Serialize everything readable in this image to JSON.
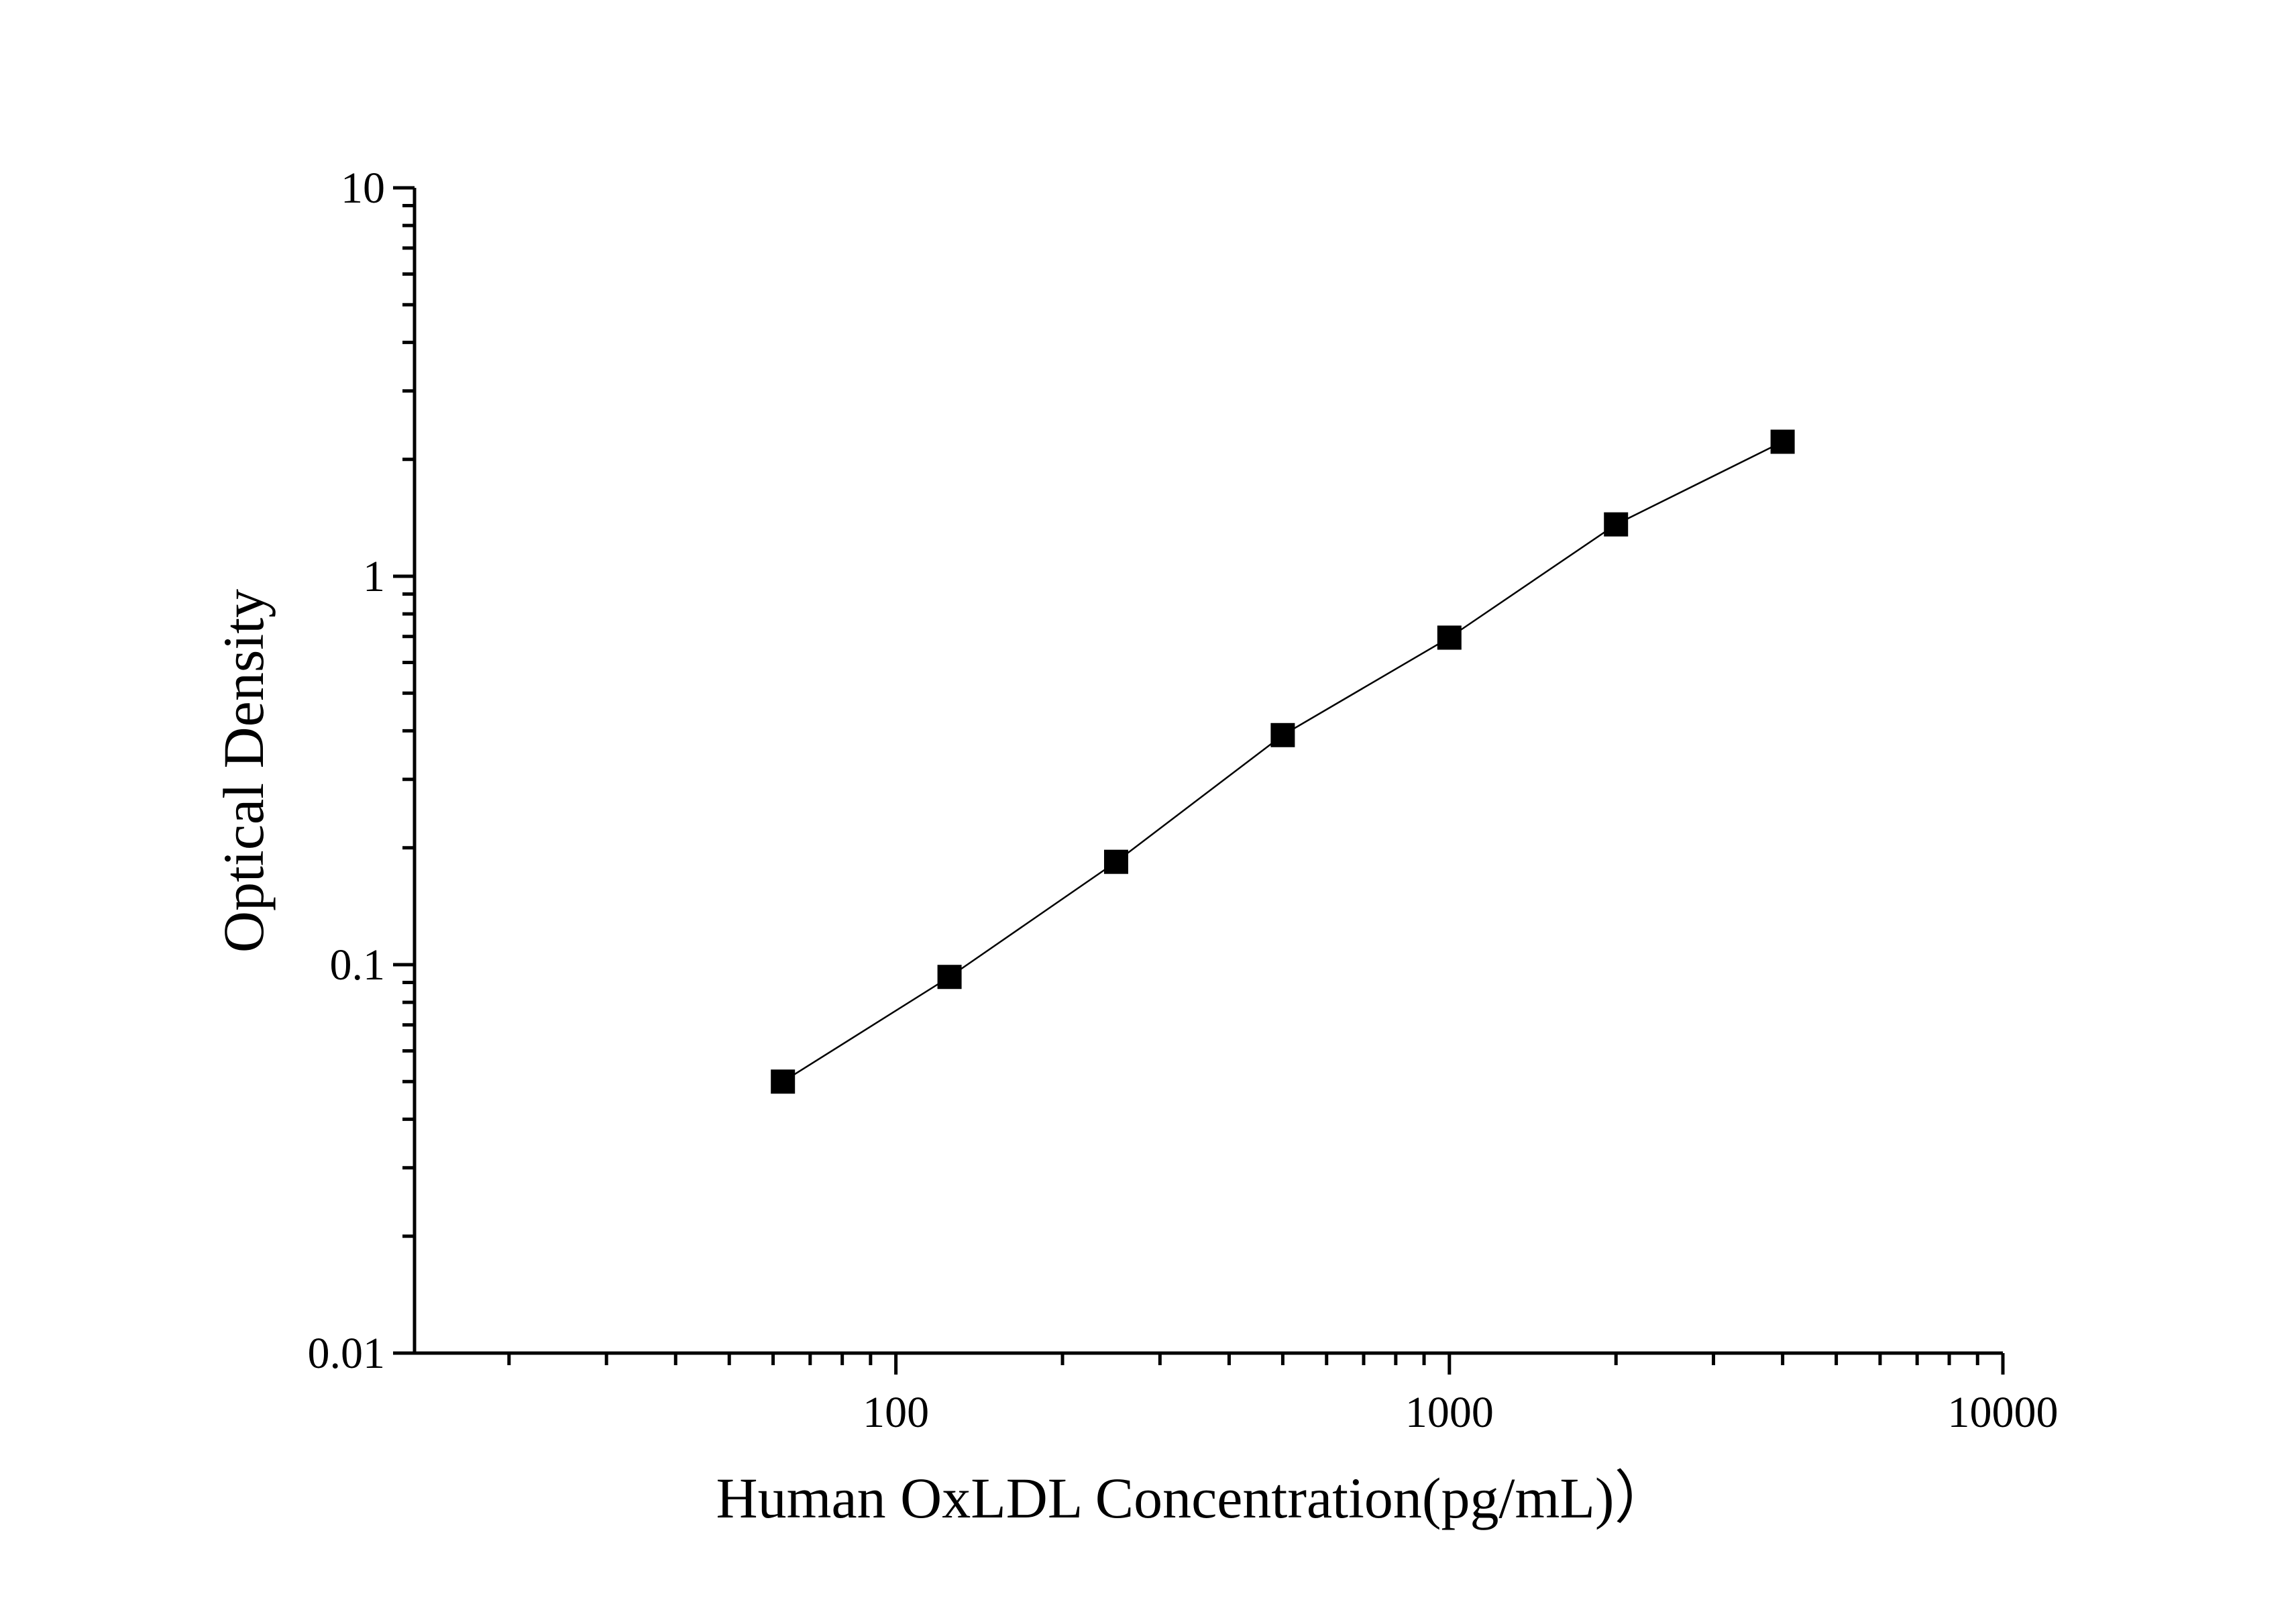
{
  "chart_data": {
    "type": "scatter",
    "title": "",
    "xlabel": "Human OxLDL Concentration(pg/mL)）",
    "ylabel": "Optical Density",
    "x_scale": "log",
    "y_scale": "log",
    "xlim": [
      13.5,
      10000
    ],
    "ylim": [
      0.01,
      10
    ],
    "x_ticks": [
      100,
      1000,
      10000
    ],
    "x_tick_labels": [
      "100",
      "1000",
      "10000"
    ],
    "y_ticks": [
      0.01,
      0.1,
      1,
      10
    ],
    "y_tick_labels": [
      "0.01",
      "0.1",
      "1",
      "10"
    ],
    "grid": false,
    "legend": "none",
    "series": [
      {
        "marker": "square",
        "line": "connected",
        "color": "#000000",
        "x": [
          62.5,
          125,
          250,
          500,
          1000,
          2000,
          4000
        ],
        "y": [
          0.05,
          0.093,
          0.184,
          0.39,
          0.695,
          1.36,
          2.22
        ]
      }
    ]
  }
}
